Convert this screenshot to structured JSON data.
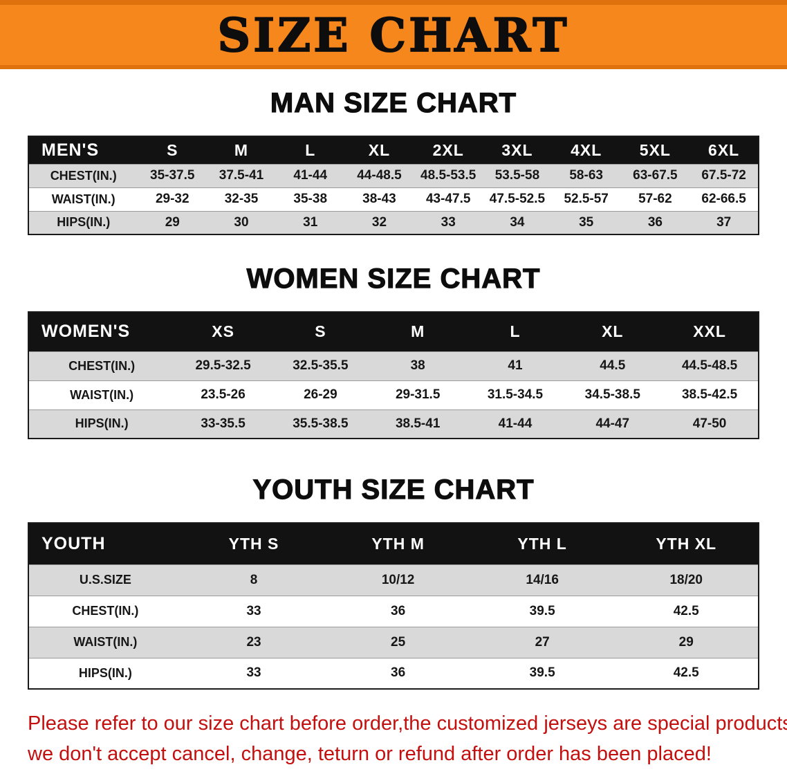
{
  "banner": {
    "title": "SIZE CHART"
  },
  "colors": {
    "banner_bg": "#f6871c",
    "banner_edge": "#e0720d",
    "table_header_bg": "#121212",
    "row_stripe": "#d9d9d9",
    "note_color": "#c40f0f"
  },
  "sections": [
    {
      "id": "men",
      "heading": "MAN SIZE CHART",
      "table": {
        "header": [
          "MEN'S",
          "S",
          "M",
          "L",
          "XL",
          "2XL",
          "3XL",
          "4XL",
          "5XL",
          "6XL"
        ],
        "rows": [
          [
            "CHEST(IN.)",
            "35-37.5",
            "37.5-41",
            "41-44",
            "44-48.5",
            "48.5-53.5",
            "53.5-58",
            "58-63",
            "63-67.5",
            "67.5-72"
          ],
          [
            "WAIST(IN.)",
            "29-32",
            "32-35",
            "35-38",
            "38-43",
            "43-47.5",
            "47.5-52.5",
            "52.5-57",
            "57-62",
            "62-66.5"
          ],
          [
            "HIPS(IN.)",
            "29",
            "30",
            "31",
            "32",
            "33",
            "34",
            "35",
            "36",
            "37"
          ]
        ]
      }
    },
    {
      "id": "women",
      "heading": "WOMEN SIZE CHART",
      "table": {
        "header": [
          "WOMEN'S",
          "XS",
          "S",
          "M",
          "L",
          "XL",
          "XXL"
        ],
        "rows": [
          [
            "CHEST(IN.)",
            "29.5-32.5",
            "32.5-35.5",
            "38",
            "41",
            "44.5",
            "44.5-48.5"
          ],
          [
            "WAIST(IN.)",
            "23.5-26",
            "26-29",
            "29-31.5",
            "31.5-34.5",
            "34.5-38.5",
            "38.5-42.5"
          ],
          [
            "HIPS(IN.)",
            "33-35.5",
            "35.5-38.5",
            "38.5-41",
            "41-44",
            "44-47",
            "47-50"
          ]
        ]
      }
    },
    {
      "id": "youth",
      "heading": "YOUTH SIZE CHART",
      "table": {
        "header": [
          "YOUTH",
          "YTH S",
          "YTH M",
          "YTH L",
          "YTH XL"
        ],
        "rows": [
          [
            "U.S.SIZE",
            "8",
            "10/12",
            "14/16",
            "18/20"
          ],
          [
            "CHEST(IN.)",
            "33",
            "36",
            "39.5",
            "42.5"
          ],
          [
            "WAIST(IN.)",
            "23",
            "25",
            "27",
            "29"
          ],
          [
            "HIPS(IN.)",
            "33",
            "36",
            "39.5",
            "42.5"
          ]
        ]
      }
    }
  ],
  "footer_note": {
    "lines": [
      "Please refer to our size chart before order,the customized jerseys are special products,",
      "we don't accept cancel, change, teturn or refund after order has been placed!"
    ]
  }
}
